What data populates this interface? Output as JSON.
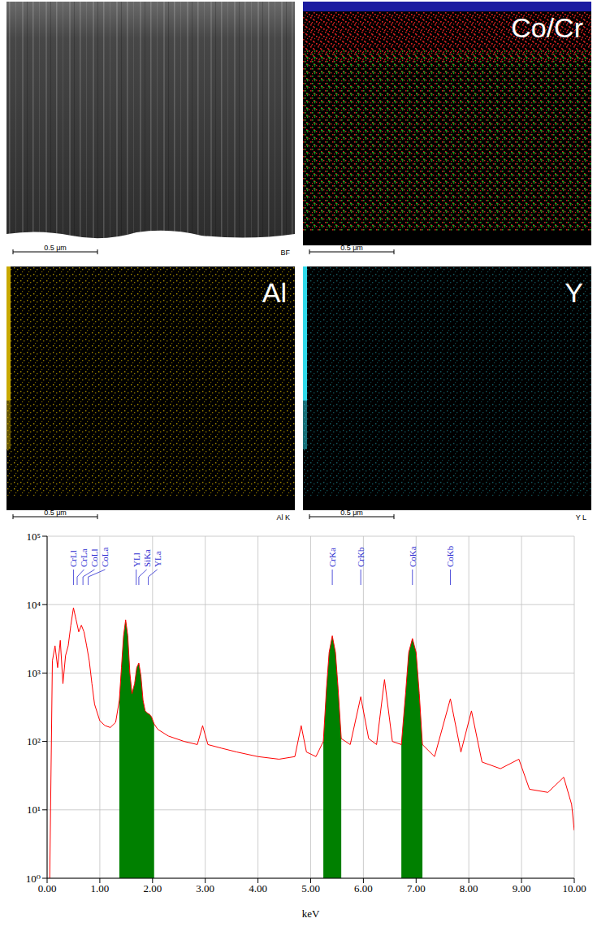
{
  "panels": [
    {
      "scale_bar": "0.5 μm",
      "corner_label": "BF"
    },
    {
      "title": "Co/Cr",
      "scale_bar": "0.5 μm",
      "colors": [
        "#d42020",
        "#22a022"
      ]
    },
    {
      "title": "Al",
      "scale_bar": "0.5 μm",
      "corner_label": "Al K",
      "color": "#c8a800"
    },
    {
      "title": "Y",
      "scale_bar": "0.5 μm",
      "corner_label": "Y L",
      "color": "#30d8e8"
    }
  ],
  "chart_data": {
    "type": "line",
    "xlabel": "keV",
    "log": "y",
    "grid": true,
    "xlim": [
      0,
      10
    ],
    "xticks": [
      {
        "value": 0,
        "label": "0.00"
      },
      {
        "value": 1,
        "label": "1.00"
      },
      {
        "value": 2,
        "label": "2.00"
      },
      {
        "value": 3,
        "label": "3.00"
      },
      {
        "value": 4,
        "label": "4.00"
      },
      {
        "value": 5,
        "label": "5.00"
      },
      {
        "value": 6,
        "label": "6.00"
      },
      {
        "value": 7,
        "label": "7.00"
      },
      {
        "value": 8,
        "label": "8.00"
      },
      {
        "value": 9,
        "label": "9.00"
      },
      {
        "value": 10,
        "label": "10.00"
      }
    ],
    "ylim": [
      1,
      100000
    ],
    "yticks": [
      {
        "value": 1,
        "label": "10⁰"
      },
      {
        "value": 10,
        "label": "10¹"
      },
      {
        "value": 100,
        "label": "10²"
      },
      {
        "value": 1000,
        "label": "10³"
      },
      {
        "value": 10000,
        "label": "10⁴"
      },
      {
        "value": 100000,
        "label": "10⁵"
      }
    ],
    "x": [
      0.05,
      0.1,
      0.15,
      0.2,
      0.25,
      0.3,
      0.35,
      0.4,
      0.45,
      0.5,
      0.55,
      0.6,
      0.65,
      0.7,
      0.75,
      0.8,
      0.85,
      0.9,
      1.0,
      1.1,
      1.2,
      1.3,
      1.37,
      1.41,
      1.45,
      1.49,
      1.53,
      1.57,
      1.61,
      1.66,
      1.7,
      1.74,
      1.78,
      1.82,
      1.86,
      1.9,
      1.94,
      1.98,
      2.03,
      2.1,
      2.3,
      2.6,
      2.85,
      2.95,
      3.05,
      3.3,
      3.6,
      4.0,
      4.4,
      4.7,
      4.82,
      4.92,
      5.1,
      5.24,
      5.3,
      5.35,
      5.41,
      5.47,
      5.52,
      5.58,
      5.75,
      5.95,
      6.1,
      6.25,
      6.4,
      6.55,
      6.72,
      6.8,
      6.86,
      6.93,
      7.0,
      7.06,
      7.12,
      7.35,
      7.65,
      7.85,
      8.05,
      8.25,
      8.6,
      8.95,
      9.15,
      9.5,
      9.8,
      9.95,
      10.0
    ],
    "series": [
      {
        "type": "line",
        "color": "#ff0000",
        "values": [
          1,
          1500,
          2500,
          1200,
          3000,
          700,
          1800,
          2500,
          5000,
          9000,
          6000,
          4000,
          5000,
          4000,
          2500,
          1500,
          700,
          350,
          200,
          170,
          160,
          190,
          400,
          1200,
          3500,
          6000,
          3500,
          1000,
          500,
          700,
          1200,
          1400,
          900,
          400,
          280,
          260,
          250,
          230,
          180,
          150,
          120,
          100,
          90,
          170,
          90,
          80,
          70,
          60,
          55,
          60,
          170,
          70,
          60,
          100,
          600,
          2000,
          3500,
          2000,
          600,
          110,
          90,
          450,
          110,
          90,
          800,
          100,
          90,
          500,
          2000,
          3200,
          2000,
          500,
          90,
          60,
          420,
          70,
          280,
          50,
          40,
          55,
          20,
          18,
          30,
          12,
          5
        ]
      },
      {
        "type": "area",
        "color": "#008000",
        "values": [
          null,
          null,
          null,
          null,
          null,
          null,
          null,
          null,
          null,
          null,
          null,
          null,
          null,
          null,
          null,
          null,
          null,
          null,
          null,
          null,
          null,
          null,
          400,
          1200,
          3500,
          6000,
          3500,
          1000,
          500,
          700,
          1200,
          1400,
          900,
          400,
          280,
          260,
          250,
          230,
          180,
          null,
          null,
          null,
          null,
          null,
          null,
          null,
          null,
          null,
          null,
          null,
          null,
          null,
          null,
          100,
          600,
          2000,
          3500,
          2000,
          600,
          110,
          null,
          null,
          null,
          null,
          null,
          null,
          90,
          500,
          2000,
          3200,
          2000,
          500,
          90,
          null,
          null,
          null,
          null,
          null,
          null,
          null,
          null,
          null,
          null,
          null,
          null
        ]
      }
    ],
    "annotations": [
      {
        "text": "CrLl",
        "x": 0.5
      },
      {
        "text": "CrLa",
        "x": 0.57
      },
      {
        "text": "CoLl",
        "x": 0.68
      },
      {
        "text": "CoLa",
        "x": 0.78
      },
      {
        "text": "YLl",
        "x": 1.69
      },
      {
        "text": "SiKa",
        "x": 1.74
      },
      {
        "text": "YLa",
        "x": 1.92
      },
      {
        "text": "CrKa",
        "x": 5.41
      },
      {
        "text": "CrKb",
        "x": 5.95
      },
      {
        "text": "CoKa",
        "x": 6.93
      },
      {
        "text": "CoKb",
        "x": 7.65
      }
    ]
  }
}
